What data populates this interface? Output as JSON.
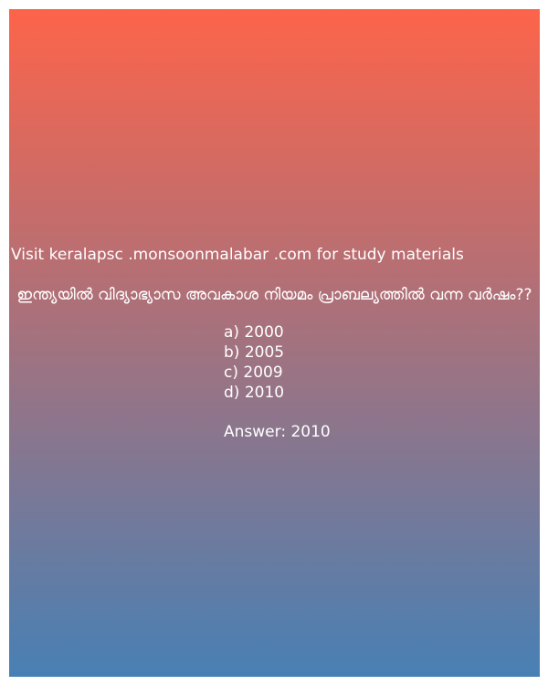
{
  "colors": {
    "gradient_top": "#fd644a",
    "gradient_bottom": "#4880b4",
    "text": "#ffffff"
  },
  "site_line": "Visit keralapsc .monsoonmalabar .com for study materials",
  "question": "ഇന്ത്യയിൽ വിദ്യാഭ്യാസ അവകാശ നിയമം പ്രാബല്യത്തിൽ വന്ന വർഷം??",
  "options": [
    "a) 2000",
    "b) 2005",
    "c) 2009",
    "d) 2010"
  ],
  "answer": "Answer: 2010"
}
